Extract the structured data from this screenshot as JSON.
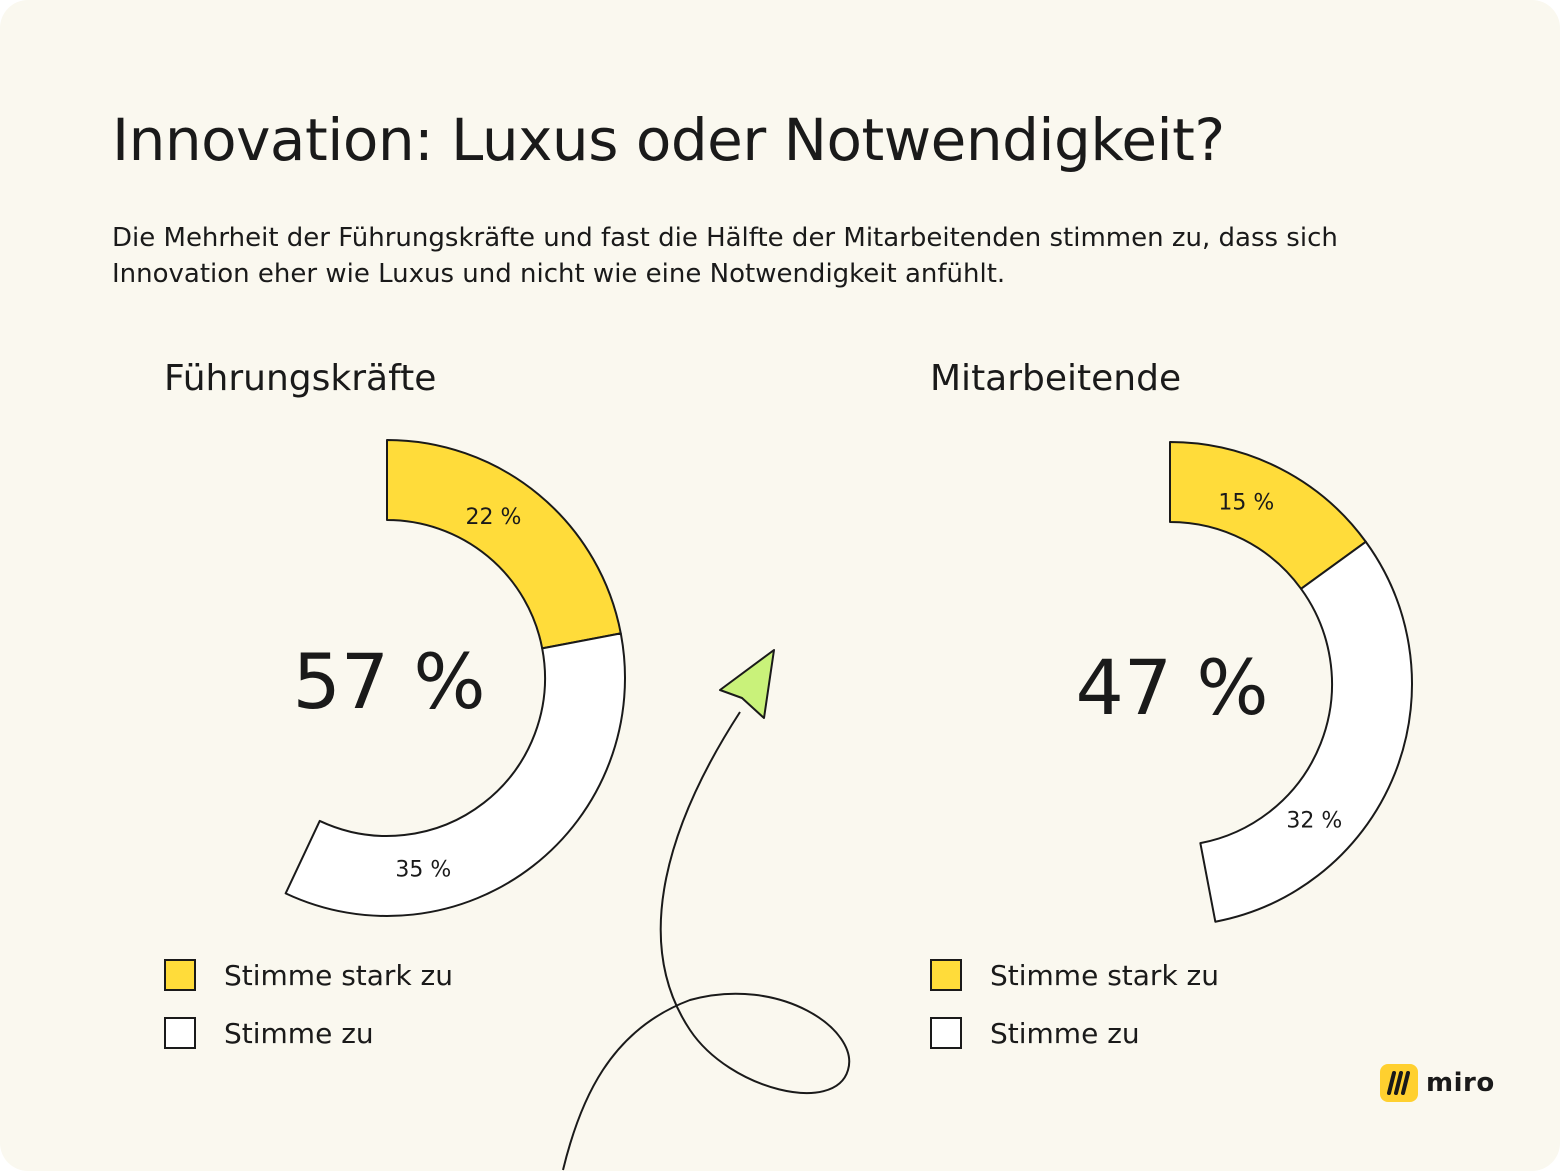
{
  "title": "Innovation: Luxus oder Notwendigkeit?",
  "subtitle": "Die Mehrheit der Führungskräfte und fast die Hälfte der Mitarbeitenden stimmen zu, dass sich Innovation eher wie Luxus und nicht wie eine Notwendigkeit anfühlt.",
  "colors": {
    "background": "#faf8ef",
    "strongly_agree": "#ffdc3a",
    "agree": "#ffffff",
    "outline": "#1a1a1a",
    "arrow": "#c9f27a"
  },
  "chart_data": [
    {
      "type": "pie",
      "title": "Führungskräfte",
      "total_label": "57 %",
      "slices": [
        {
          "label": "Stimme stark zu",
          "value": 22,
          "value_label": "22 %"
        },
        {
          "label": "Stimme zu",
          "value": 35,
          "value_label": "35 %"
        }
      ]
    },
    {
      "type": "pie",
      "title": "Mitarbeitende",
      "total_label": "47 %",
      "slices": [
        {
          "label": "Stimme stark zu",
          "value": 15,
          "value_label": "15 %"
        },
        {
          "label": "Stimme zu",
          "value": 32,
          "value_label": "32 %"
        }
      ]
    }
  ],
  "legend": {
    "strongly_agree": "Stimme stark zu",
    "agree": "Stimme zu"
  },
  "logo": {
    "text": "miro",
    "icon": "miro-logo-icon"
  }
}
